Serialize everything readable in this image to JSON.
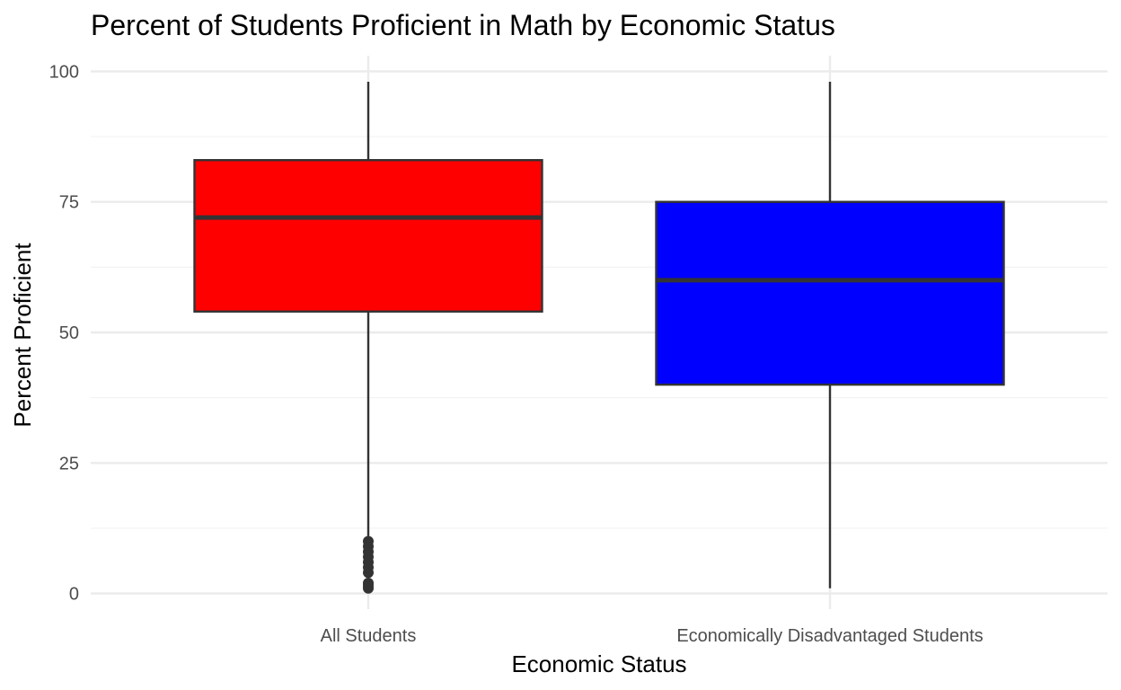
{
  "chart_data": {
    "type": "boxplot",
    "title": "Percent of Students Proficient in Math by Economic Status",
    "xlabel": "Economic Status",
    "ylabel": "Percent Proficient",
    "ylim": [
      -3,
      103
    ],
    "y_ticks": [
      0,
      25,
      50,
      75,
      100
    ],
    "y_minor_ticks": [
      12.5,
      37.5,
      62.5,
      87.5
    ],
    "grid": true,
    "legend": "none",
    "categories": [
      "All Students",
      "Economically Disadvantaged Students"
    ],
    "boxes": [
      {
        "category": "All Students",
        "fill": "#ff0000",
        "whisker_low": 11,
        "q1": 54,
        "median": 72,
        "q3": 83,
        "whisker_high": 98,
        "outliers": [
          1,
          1.5,
          2,
          4,
          5,
          6,
          7,
          8,
          9,
          10
        ]
      },
      {
        "category": "Economically Disadvantaged Students",
        "fill": "#0000ff",
        "whisker_low": 1,
        "q1": 40,
        "median": 60,
        "q3": 75,
        "whisker_high": 98,
        "outliers": []
      }
    ],
    "colors": {
      "grid_major": "#ebebeb",
      "grid_minor": "#f3f3f3",
      "box_stroke": "#333333",
      "tick_text": "#4d4d4d"
    }
  }
}
